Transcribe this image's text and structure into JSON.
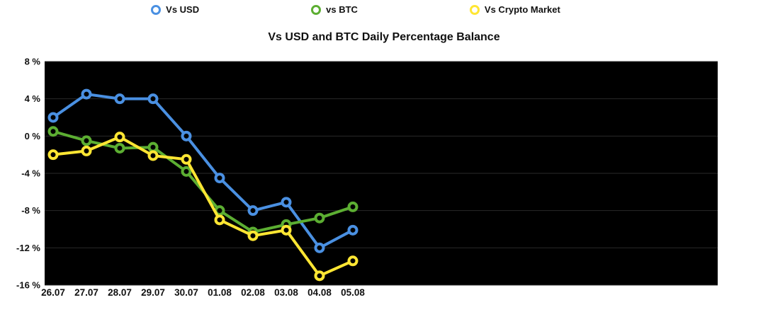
{
  "legend": {
    "items": [
      {
        "label": "Vs USD",
        "color": "#4a90e2"
      },
      {
        "label": "vs BTC",
        "color": "#5cae32"
      },
      {
        "label": "Vs Crypto Market",
        "color": "#ffe633"
      }
    ]
  },
  "title": "Vs USD and BTC Daily Percentage Balance",
  "chart_data": {
    "type": "line",
    "x": [
      "26.07",
      "27.07",
      "28.07",
      "29.07",
      "30.07",
      "01.08",
      "02.08",
      "03.08",
      "04.08",
      "05.08"
    ],
    "series": [
      {
        "name": "Vs USD",
        "color": "#4a90e2",
        "values": [
          2,
          4.5,
          4,
          4,
          0,
          -4.5,
          -8,
          -7.1,
          -12,
          -10.1
        ]
      },
      {
        "name": "vs BTC",
        "color": "#5cae32",
        "values": [
          0.5,
          -0.5,
          -1.3,
          -1.2,
          -3.8,
          -8,
          -10.3,
          -9.5,
          -8.8,
          -7.6
        ]
      },
      {
        "name": "Vs Crypto Market",
        "color": "#ffe633",
        "values": [
          -2,
          -1.6,
          -0.1,
          -2.1,
          -2.5,
          -9,
          -10.7,
          -10.1,
          -15,
          -13.4
        ]
      }
    ],
    "title": "Vs USD and BTC Daily Percentage Balance",
    "xlabel": "",
    "ylabel": "",
    "y_ticks": [
      8,
      4,
      0,
      -4,
      -8,
      -12,
      -16
    ],
    "y_tick_suffix": " %",
    "ylim": [
      -16,
      8
    ],
    "plot_bg": "#000000",
    "grid_color": "#2a2a2a",
    "grid": true,
    "legend_position": "top"
  }
}
